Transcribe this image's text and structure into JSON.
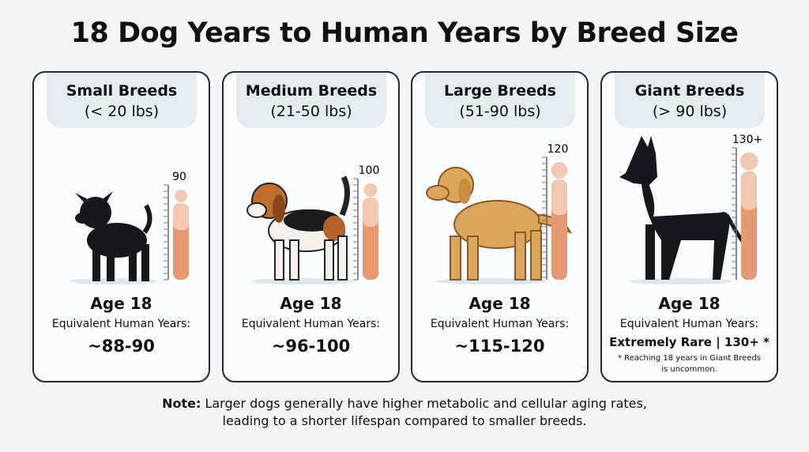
{
  "title": "18 Dog Years to Human Years by Breed Size",
  "cards": [
    {
      "name": "Small Breeds",
      "range": "(< 20 lbs)",
      "scale_label": "90",
      "age": "Age 18",
      "equiv_label": "Equivalent Human Years:",
      "equiv": "~88-90"
    },
    {
      "name": "Medium Breeds",
      "range": "(21-50 lbs)",
      "scale_label": "100",
      "age": "Age 18",
      "equiv_label": "Equivalent Human Years:",
      "equiv": "~96-100"
    },
    {
      "name": "Large Breeds",
      "range": "(51-90 lbs)",
      "scale_label": "120",
      "age": "Age 18",
      "equiv_label": "Equivalent Human Years:",
      "equiv": "~115-120"
    },
    {
      "name": "Giant Breeds",
      "range": "(> 90 lbs)",
      "scale_label": "130+",
      "age": "Age 18",
      "equiv_label": "Equivalent Human Years:",
      "equiv": "Extremely Rare | 130+ *",
      "footnote": [
        "* Reaching 18 years in Giant Breeds",
        "is uncommon."
      ]
    }
  ],
  "note": {
    "label": "Note:",
    "lines": [
      "Larger dogs generally have higher metabolic and cellular aging rates,",
      "leading to a shorter lifespan compared to smaller breeds."
    ]
  }
}
